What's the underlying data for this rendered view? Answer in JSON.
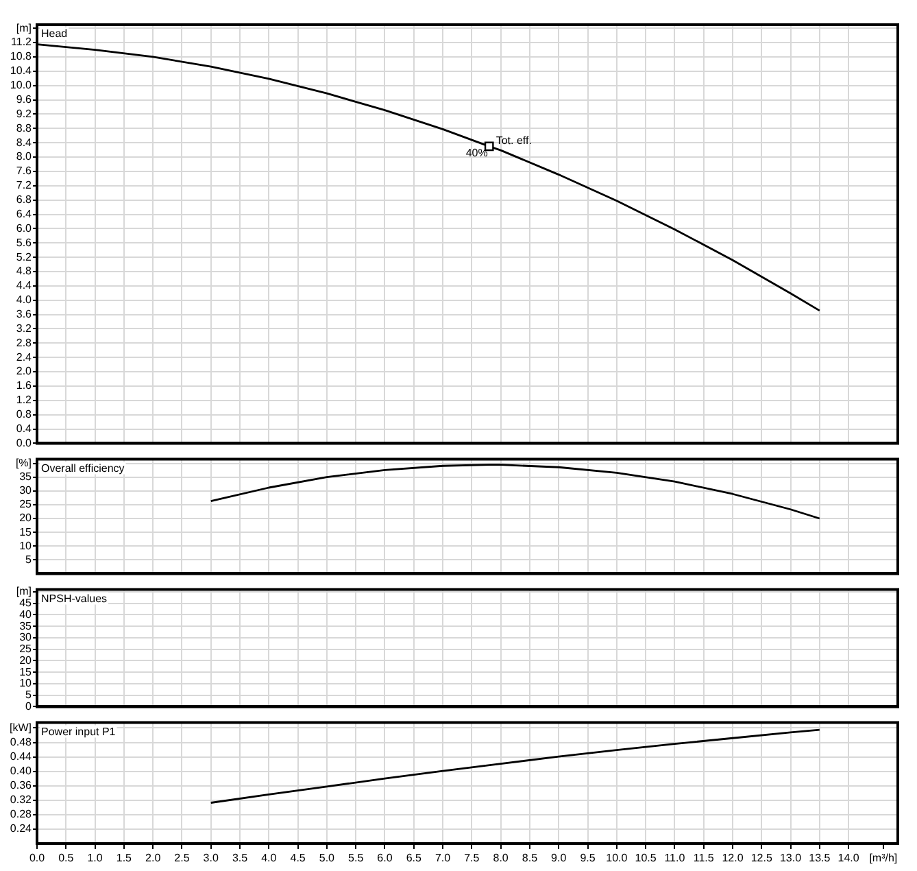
{
  "chart_data": [
    {
      "type": "line",
      "title": "Head",
      "xlim": [
        0,
        14.85
      ],
      "xticks": [
        0,
        0.5,
        1,
        1.5,
        2,
        2.5,
        3,
        3.5,
        4,
        4.5,
        5,
        5.5,
        6,
        6.5,
        7,
        7.5,
        8,
        8.5,
        9,
        9.5,
        10,
        10.5,
        11,
        11.5,
        12,
        12.5,
        13,
        13.5,
        14
      ],
      "ylim": [
        0,
        11.7
      ],
      "yticks": [
        {
          "value": 0,
          "label": "0.0"
        },
        {
          "value": 0.4,
          "label": "0.4"
        },
        {
          "value": 0.8,
          "label": "0.8"
        },
        {
          "value": 1.2,
          "label": "1.2"
        },
        {
          "value": 1.6,
          "label": "1.6"
        },
        {
          "value": 2,
          "label": "2.0"
        },
        {
          "value": 2.4,
          "label": "2.4"
        },
        {
          "value": 2.8,
          "label": "2.8"
        },
        {
          "value": 3.2,
          "label": "3.2"
        },
        {
          "value": 3.6,
          "label": "3.6"
        },
        {
          "value": 4,
          "label": "4.0"
        },
        {
          "value": 4.4,
          "label": "4.4"
        },
        {
          "value": 4.8,
          "label": "4.8"
        },
        {
          "value": 5.2,
          "label": "5.2"
        },
        {
          "value": 5.6,
          "label": "5.6"
        },
        {
          "value": 6,
          "label": "6.0"
        },
        {
          "value": 6.4,
          "label": "6.4"
        },
        {
          "value": 6.8,
          "label": "6.8"
        },
        {
          "value": 7.2,
          "label": "7.2"
        },
        {
          "value": 7.6,
          "label": "7.6"
        },
        {
          "value": 8,
          "label": "8.0"
        },
        {
          "value": 8.4,
          "label": "8.4"
        },
        {
          "value": 8.8,
          "label": "8.8"
        },
        {
          "value": 9.2,
          "label": "9.2"
        },
        {
          "value": 9.6,
          "label": "9.6"
        },
        {
          "value": 10,
          "label": "10.0"
        },
        {
          "value": 10.4,
          "label": "10.4"
        },
        {
          "value": 10.8,
          "label": "10.8"
        },
        {
          "value": 11.2,
          "label": "11.2"
        },
        {
          "value": 11.6,
          "label": "[m]"
        }
      ],
      "grid": true,
      "tick_labels": "y",
      "marker": "none",
      "series": [
        {
          "color": "#000000",
          "x": [
            0,
            1,
            2,
            3,
            4,
            5,
            6,
            7,
            7.8,
            8,
            9,
            10,
            11,
            12,
            13,
            13.5
          ],
          "values": [
            11.15,
            11.0,
            10.8,
            10.53,
            10.19,
            9.78,
            9.31,
            8.78,
            8.3,
            8.19,
            7.51,
            6.78,
            5.98,
            5.12,
            4.19,
            3.71
          ]
        },
        {
          "type": "scatter",
          "marker": "square",
          "color": "#000000",
          "x": [
            7.8
          ],
          "values": [
            8.3
          ]
        }
      ],
      "annotations": [
        {
          "text": "Tot. eff.",
          "x": 7.8,
          "y": 8.3
        },
        {
          "text": "40%",
          "x": 7.8,
          "y": 8.3
        }
      ]
    },
    {
      "type": "line",
      "title": "Overall efficiency",
      "xlim": [
        0,
        14.85
      ],
      "xticks": [
        0,
        0.5,
        1,
        1.5,
        2,
        2.5,
        3,
        3.5,
        4,
        4.5,
        5,
        5.5,
        6,
        6.5,
        7,
        7.5,
        8,
        8.5,
        9,
        9.5,
        10,
        10.5,
        11,
        11.5,
        12,
        12.5,
        13,
        13.5,
        14
      ],
      "ylim": [
        0,
        41.5
      ],
      "yticks": [
        5,
        10,
        15,
        20,
        25,
        30,
        35,
        {
          "value": 40,
          "label": "[%]"
        }
      ],
      "grid": true,
      "tick_labels": "y",
      "marker": "none",
      "series": [
        {
          "color": "#000000",
          "x": [
            3,
            4,
            5,
            6,
            7,
            7.8,
            8,
            9,
            10,
            11,
            12,
            13,
            13.5
          ],
          "values": [
            26.3,
            31.2,
            35.0,
            37.6,
            39.1,
            39.5,
            39.5,
            38.6,
            36.6,
            33.4,
            28.9,
            23.3,
            20
          ]
        }
      ]
    },
    {
      "type": "line",
      "title": "NPSH-values",
      "xlim": [
        0,
        14.85
      ],
      "xticks": [
        0,
        0.5,
        1,
        1.5,
        2,
        2.5,
        3,
        3.5,
        4,
        4.5,
        5,
        5.5,
        6,
        6.5,
        7,
        7.5,
        8,
        8.5,
        9,
        9.5,
        10,
        10.5,
        11,
        11.5,
        12,
        12.5,
        13,
        13.5,
        14
      ],
      "ylim": [
        0,
        51
      ],
      "yticks": [
        0,
        5,
        10,
        15,
        20,
        25,
        30,
        35,
        40,
        45,
        {
          "value": 50,
          "label": "[m]"
        }
      ],
      "grid": true,
      "tick_labels": "y"
    },
    {
      "type": "line",
      "title": "Power input P1",
      "xlim": [
        0,
        14.85
      ],
      "xticks": [
        {
          "value": 0,
          "label": "0.0"
        },
        {
          "value": 0.5,
          "label": "0.5"
        },
        {
          "value": 1,
          "label": "1.0"
        },
        {
          "value": 1.5,
          "label": "1.5"
        },
        {
          "value": 2,
          "label": "2.0"
        },
        {
          "value": 2.5,
          "label": "2.5"
        },
        {
          "value": 3,
          "label": "3.0"
        },
        {
          "value": 3.5,
          "label": "3.5"
        },
        {
          "value": 4,
          "label": "4.0"
        },
        {
          "value": 4.5,
          "label": "4.5"
        },
        {
          "value": 5,
          "label": "5.0"
        },
        {
          "value": 5.5,
          "label": "5.5"
        },
        {
          "value": 6,
          "label": "6.0"
        },
        {
          "value": 6.5,
          "label": "6.5"
        },
        {
          "value": 7,
          "label": "7.0"
        },
        {
          "value": 7.5,
          "label": "7.5"
        },
        {
          "value": 8,
          "label": "8.0"
        },
        {
          "value": 8.5,
          "label": "8.5"
        },
        {
          "value": 9,
          "label": "9.0"
        },
        {
          "value": 9.5,
          "label": "9.5"
        },
        {
          "value": 10,
          "label": "10.0"
        },
        {
          "value": 10.5,
          "label": "10.5"
        },
        {
          "value": 11,
          "label": "11.0"
        },
        {
          "value": 11.5,
          "label": "11.5"
        },
        {
          "value": 12,
          "label": "12.0"
        },
        {
          "value": 12.5,
          "label": "12.5"
        },
        {
          "value": 13,
          "label": "13.0"
        },
        {
          "value": 13.5,
          "label": "13.5"
        },
        {
          "value": 14,
          "label": "14.0"
        },
        {
          "value": 14.6,
          "label": "[m³/h]"
        }
      ],
      "ylim": [
        0.2,
        0.535
      ],
      "yticks": [
        {
          "value": 0.24,
          "label": "0.24"
        },
        {
          "value": 0.28,
          "label": "0.28"
        },
        {
          "value": 0.32,
          "label": "0.32"
        },
        {
          "value": 0.36,
          "label": "0.36"
        },
        {
          "value": 0.4,
          "label": "0.40"
        },
        {
          "value": 0.44,
          "label": "0.44"
        },
        {
          "value": 0.48,
          "label": "0.48"
        },
        {
          "value": 0.52,
          "label": "[kW]"
        }
      ],
      "grid": true,
      "marker": "none",
      "series": [
        {
          "color": "#000000",
          "x": [
            3,
            4,
            5,
            6,
            7,
            8,
            9,
            10,
            11,
            12,
            13,
            13.5
          ],
          "values": [
            0.313,
            0.336,
            0.358,
            0.38,
            0.401,
            0.421,
            0.441,
            0.459,
            0.476,
            0.492,
            0.508,
            0.515
          ]
        }
      ]
    }
  ]
}
